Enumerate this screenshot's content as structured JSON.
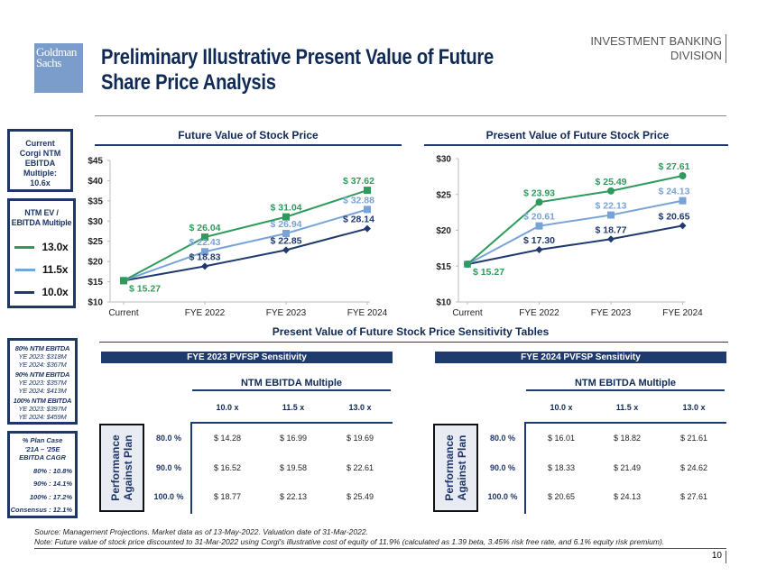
{
  "header": {
    "logo_line1": "Goldman",
    "logo_line2": "Sachs",
    "title_line1": "Preliminary Illustrative Present Value of Future",
    "title_line2": "Share Price Analysis",
    "division_line1": "INVESTMENT BANKING",
    "division_line2": "DIVISION"
  },
  "sidebar": {
    "current_multiple": [
      "Current",
      "Corgi NTM",
      "EBITDA",
      "Multiple:",
      "10.6x"
    ],
    "legend_title": [
      "NTM EV /",
      "EBITDA Multiple"
    ],
    "legend": [
      {
        "label": "13.0x",
        "color": "#2e9b5c"
      },
      {
        "label": "11.5x",
        "color": "#78a3d6"
      },
      {
        "label": "10.0x",
        "color": "#1f3a6e"
      }
    ],
    "ebitda_cases": [
      {
        "title": "80% NTM EBITDA",
        "l1": "YE 2023: $318M",
        "l2": "YE 2024: $367M"
      },
      {
        "title": "90% NTM EBITDA",
        "l1": "YE 2023: $357M",
        "l2": "YE 2024: $413M"
      },
      {
        "title": "100% NTM EBITDA",
        "l1": "YE 2023: $397M",
        "l2": "YE 2024: $459M"
      }
    ],
    "cagr_title": [
      "% Plan Case",
      "'21A – '25E",
      "EBITDA CAGR"
    ],
    "cagr": [
      "80% : 10.8%",
      "90% : 14.1%",
      "100% : 17.2%",
      "Consensus : 12.1%"
    ]
  },
  "chart_data": [
    {
      "type": "line",
      "title": "Future Value of Stock Price",
      "categories": [
        "Current",
        "FYE 2022",
        "FYE 2023",
        "FYE 2024"
      ],
      "ylim": [
        10,
        45
      ],
      "yticks": [
        "$10",
        "$15",
        "$20",
        "$25",
        "$30",
        "$35",
        "$40",
        "$45"
      ],
      "ytickvals": [
        10,
        15,
        20,
        25,
        30,
        35,
        40,
        45
      ],
      "series": [
        {
          "name": "13.0x",
          "color": "#2e9b5c",
          "marker": "square",
          "values": [
            15.27,
            26.04,
            31.04,
            37.62
          ],
          "labels": [
            "$ 15.27",
            "$ 26.04",
            "$ 31.04",
            "$ 37.62"
          ]
        },
        {
          "name": "11.5x",
          "color": "#78a3d6",
          "marker": "square",
          "values": [
            15.27,
            22.43,
            26.94,
            32.88
          ],
          "labels": [
            "",
            "$ 22.43",
            "$ 26.94",
            "$ 32.88"
          ]
        },
        {
          "name": "10.0x",
          "color": "#1f3a6e",
          "marker": "diamond",
          "values": [
            15.27,
            18.83,
            22.85,
            28.14
          ],
          "labels": [
            "",
            "$ 18.83",
            "$ 22.85",
            "$ 28.14"
          ]
        }
      ]
    },
    {
      "type": "line",
      "title": "Present Value of Future Stock Price",
      "categories": [
        "Current",
        "FYE 2022",
        "FYE 2023",
        "FYE 2024"
      ],
      "ylim": [
        10,
        30
      ],
      "yticks": [
        "$10",
        "$15",
        "$20",
        "$25",
        "$30"
      ],
      "ytickvals": [
        10,
        15,
        20,
        25,
        30
      ],
      "series": [
        {
          "name": "13.0x",
          "color": "#2e9b5c",
          "marker": "circle",
          "values": [
            15.27,
            23.93,
            25.49,
            27.61
          ],
          "labels": [
            "$ 15.27",
            "$ 23.93",
            "$ 25.49",
            "$ 27.61"
          ]
        },
        {
          "name": "11.5x",
          "color": "#78a3d6",
          "marker": "square",
          "values": [
            15.27,
            20.61,
            22.13,
            24.13
          ],
          "labels": [
            "",
            "$ 20.61",
            "$ 22.13",
            "$ 24.13"
          ]
        },
        {
          "name": "10.0x",
          "color": "#1f3a6e",
          "marker": "diamond",
          "values": [
            15.27,
            17.3,
            18.77,
            20.65
          ],
          "labels": [
            "",
            "$ 17.30",
            "$ 18.77",
            "$ 20.65"
          ]
        }
      ]
    }
  ],
  "sensitivity": {
    "section_title": "Present Value of Future Stock Price Sensitivity Tables",
    "tables": [
      {
        "title": "FYE 2023 PVFSP Sensitivity",
        "col_group": "NTM EBITDA Multiple",
        "row_group": [
          "Performance",
          "Against Plan"
        ],
        "columns": [
          "10.0 x",
          "11.5 x",
          "13.0 x"
        ],
        "rows": [
          {
            "label": "80.0 %",
            "values": [
              "$ 14.28",
              "$ 16.99",
              "$ 19.69"
            ]
          },
          {
            "label": "90.0 %",
            "values": [
              "$ 16.52",
              "$ 19.58",
              "$ 22.61"
            ]
          },
          {
            "label": "100.0 %",
            "values": [
              "$ 18.77",
              "$ 22.13",
              "$ 25.49"
            ]
          }
        ]
      },
      {
        "title": "FYE 2024 PVFSP Sensitivity",
        "col_group": "NTM EBITDA Multiple",
        "row_group": [
          "Performance",
          "Against Plan"
        ],
        "columns": [
          "10.0 x",
          "11.5 x",
          "13.0 x"
        ],
        "rows": [
          {
            "label": "80.0 %",
            "values": [
              "$ 16.01",
              "$ 18.82",
              "$ 21.61"
            ]
          },
          {
            "label": "90.0 %",
            "values": [
              "$ 18.33",
              "$ 21.49",
              "$ 24.62"
            ]
          },
          {
            "label": "100.0 %",
            "values": [
              "$ 20.65",
              "$ 24.13",
              "$ 27.61"
            ]
          }
        ]
      }
    ]
  },
  "footer": {
    "source": "Source:  Management Projections. Market data as of 13-May-2022. Valuation date of 31-Mar-2022.",
    "note": "Note: Future value of stock price discounted to 31-Mar-2022 using Corgi's illustrative cost of equity of 11.9% (calculated as 1.39 beta, 3.45% risk free rate, and 6.1% equity risk premium).",
    "page": "10"
  }
}
